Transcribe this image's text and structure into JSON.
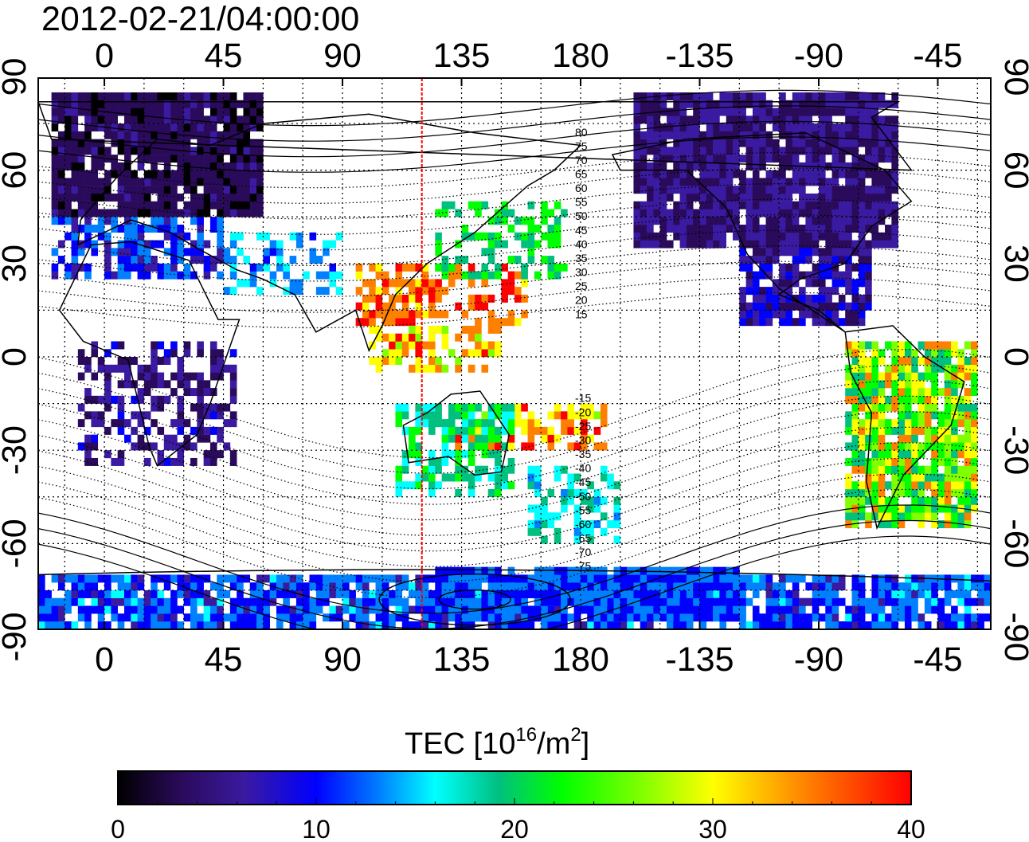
{
  "title": "2012-02-21/04:00:00",
  "map": {
    "lon_ticks": [
      "0",
      "45",
      "90",
      "135",
      "180",
      "-135",
      "-90",
      "-45"
    ],
    "lat_ticks": [
      "90",
      "60",
      "30",
      "0",
      "-30",
      "-60",
      "-90"
    ],
    "meridian_marker_lon": 120,
    "meridian_marker_color": "#ff0000",
    "grid": "dotted",
    "isoline_labels": [
      "80",
      "75",
      "70",
      "65",
      "60",
      "55",
      "50",
      "45",
      "40",
      "35",
      "30",
      "25",
      "20",
      "15",
      "-15",
      "-20",
      "-25",
      "-30",
      "-35",
      "-40",
      "-45",
      "-50",
      "-55",
      "-60",
      "-65",
      "-70",
      "-75"
    ]
  },
  "colorbar": {
    "label_main": "TEC  [10",
    "label_sup1": "16",
    "label_mid": "/m",
    "label_sup2": "2",
    "label_end": "]",
    "ticks": [
      "0",
      "10",
      "20",
      "30",
      "40"
    ],
    "range": [
      0,
      40
    ],
    "colors": [
      "#000000",
      "#2a0a5a",
      "#3a1aa0",
      "#0000ff",
      "#0080ff",
      "#00ffff",
      "#00c080",
      "#00ff00",
      "#80ff00",
      "#ffff00",
      "#ff8000",
      "#ff0000"
    ]
  }
}
